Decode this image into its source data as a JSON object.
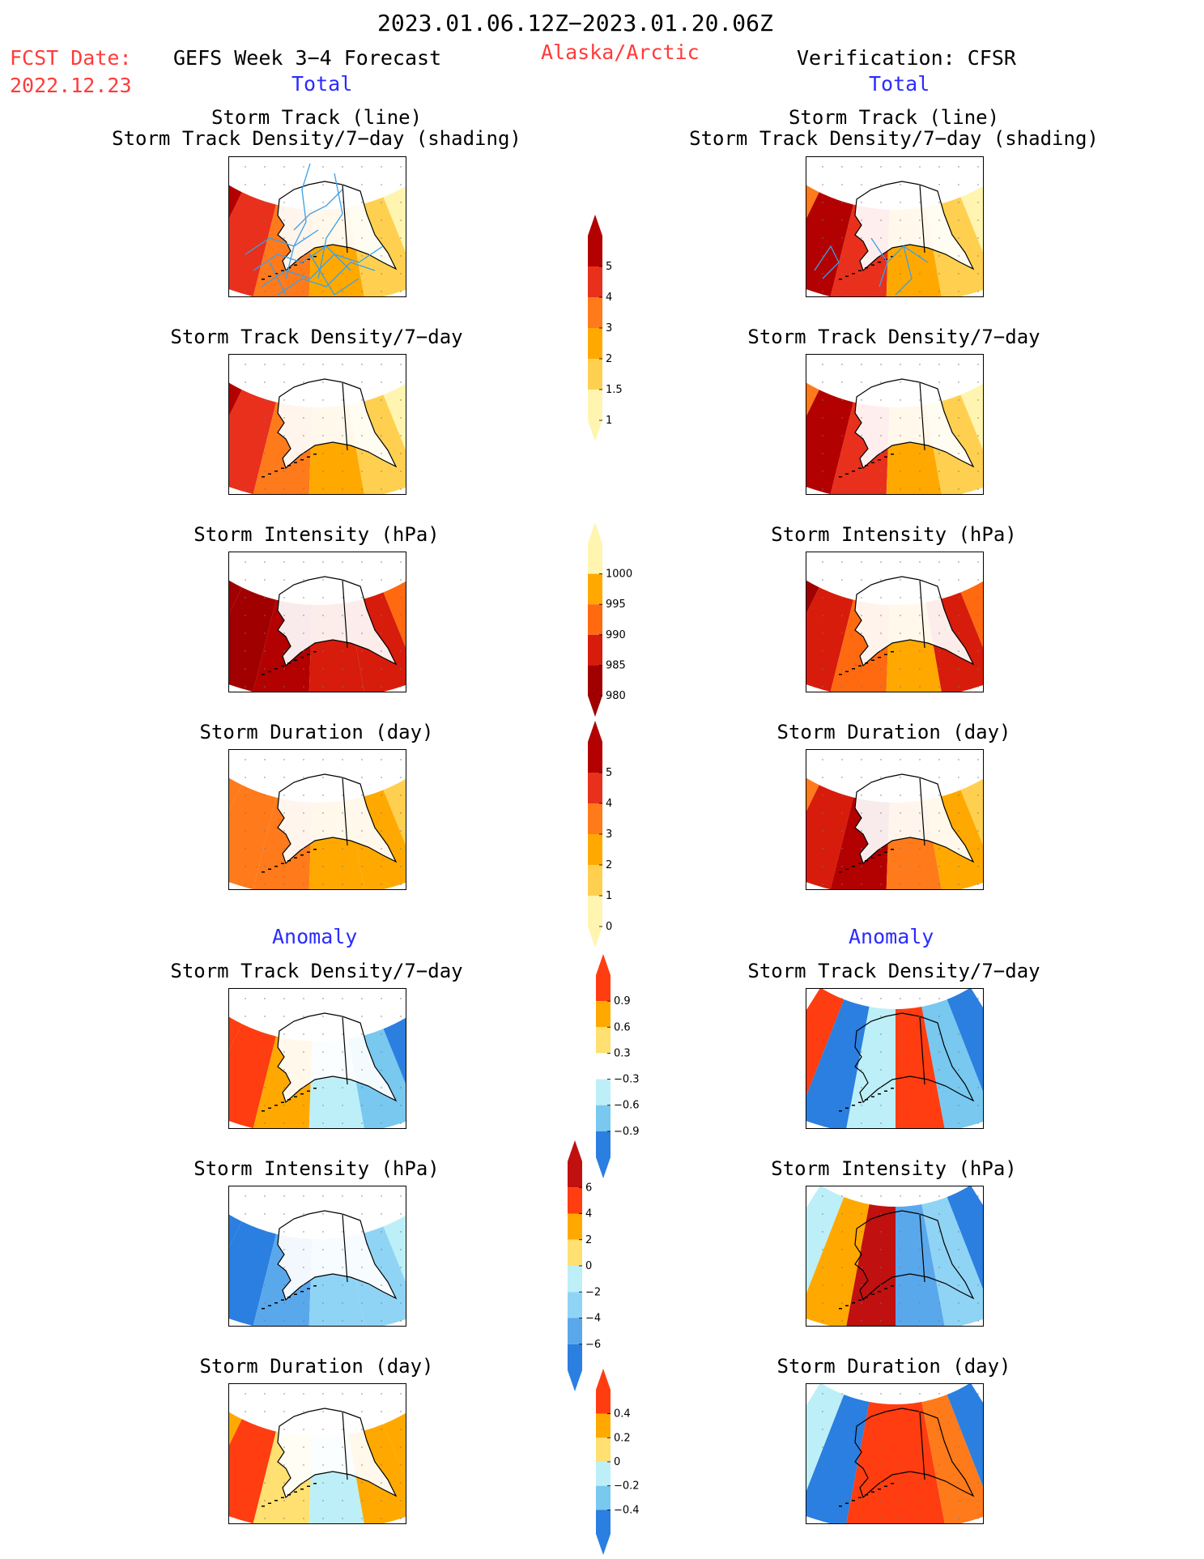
{
  "header": {
    "date_range": "2023.01.06.12Z−2023.01.20.06Z",
    "fcst_label": "FCST Date:",
    "fcst_date": "2022.12.23",
    "forecast_title": "GEFS Week 3−4 Forecast",
    "region": "Alaska/Arctic",
    "verification": "Verification: CFSR",
    "left_subtitle": "Total",
    "right_subtitle": "Total"
  },
  "sections": {
    "anomaly_left": "Anomaly",
    "anomaly_right": "Anomaly"
  },
  "rows": [
    {
      "left_title": "Storm Track (line)\nStorm Track Density/7−day (shading)",
      "right_title": "Storm Track (line)\nStorm Track Density/7−day (shading)"
    },
    {
      "left_title": "Storm Track Density/7−day",
      "right_title": "Storm Track Density/7−day"
    },
    {
      "left_title": "Storm Intensity (hPa)",
      "right_title": "Storm Intensity (hPa)"
    },
    {
      "left_title": "Storm Duration (day)",
      "right_title": "Storm Duration (day)"
    },
    {
      "left_title": "Storm Track Density/7−day",
      "right_title": "Storm Track Density/7−day"
    },
    {
      "left_title": "Storm Intensity (hPa)",
      "right_title": "Storm Intensity (hPa)"
    },
    {
      "left_title": "Storm Duration (day)",
      "right_title": "Storm Duration (day)"
    }
  ],
  "colorbars": [
    {
      "labels": [
        "5",
        "4",
        "3",
        "2",
        "1.5",
        "1"
      ],
      "colors": [
        "#b30000",
        "#e8301c",
        "#ff7a1a",
        "#ffa900",
        "#ffd050",
        "#fff5b0"
      ]
    },
    {
      "labels": [
        "1000",
        "995",
        "990",
        "985",
        "980"
      ],
      "colors": [
        "#fff5b0",
        "#ffa900",
        "#ff6a10",
        "#d71c0c",
        "#a00000"
      ]
    },
    {
      "labels": [
        "5",
        "4",
        "3",
        "2",
        "1",
        "0"
      ],
      "colors": [
        "#b30000",
        "#e8301c",
        "#ff7a1a",
        "#ffa900",
        "#ffd050",
        "#fff5b0"
      ]
    },
    {
      "labels": [
        "0.9",
        "0.6",
        "0.3",
        "−0.3",
        "−0.6",
        "−0.9"
      ],
      "colors": [
        "#ff3d10",
        "#ffa900",
        "#ffe070",
        "#ffffff",
        "#bdeff8",
        "#78c8f0",
        "#2a7fe0"
      ]
    },
    {
      "labels": [
        "6",
        "4",
        "2",
        "0",
        "−2",
        "−4",
        "−6"
      ],
      "colors": [
        "#c01010",
        "#ff3d10",
        "#ffa900",
        "#ffe070",
        "#bdeff8",
        "#90d4f5",
        "#5aa8ec",
        "#2a7fe0"
      ]
    },
    {
      "labels": [
        "0.4",
        "0.2",
        "0",
        "−0.2",
        "−0.4"
      ],
      "colors": [
        "#ff3d10",
        "#ffa900",
        "#ffe070",
        "#bdeff8",
        "#78c8f0",
        "#2a7fe0"
      ]
    }
  ]
}
